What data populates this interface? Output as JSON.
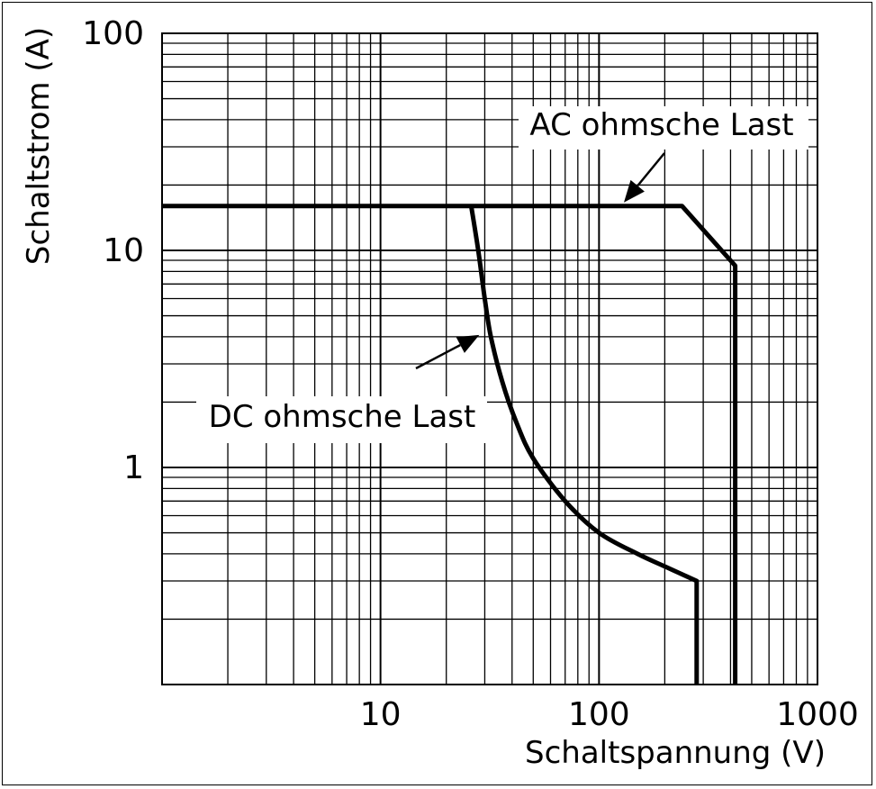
{
  "chart_data": {
    "type": "line",
    "xlabel": "Schaltspannung (V)",
    "ylabel": "Schaltstrom (A)",
    "x_scale": "log",
    "y_scale": "log",
    "xlim": [
      1,
      1000
    ],
    "ylim": [
      0.1,
      100
    ],
    "x_ticks": [
      "10",
      "100",
      "1000"
    ],
    "y_ticks": [
      "100",
      "10",
      "1"
    ],
    "grid": true,
    "series": [
      {
        "name": "AC ohmsche Last",
        "x": [
          1,
          240,
          420,
          420
        ],
        "y": [
          16,
          16,
          8.5,
          0.1
        ]
      },
      {
        "name": "DC ohmsche Last",
        "x": [
          26,
          28,
          30,
          32,
          36,
          42,
          50,
          70,
          100,
          150,
          200,
          280,
          280
        ],
        "y": [
          16,
          10,
          6,
          4,
          2.5,
          1.6,
          1.1,
          0.7,
          0.5,
          0.4,
          0.35,
          0.3,
          0.1
        ]
      }
    ],
    "annotations": [
      {
        "text": "AC ohmsche Last",
        "arrow_to": [
          130,
          16
        ]
      },
      {
        "text": "DC ohmsche Last",
        "arrow_to": [
          30,
          4
        ]
      }
    ],
    "line_color": "#000000"
  }
}
